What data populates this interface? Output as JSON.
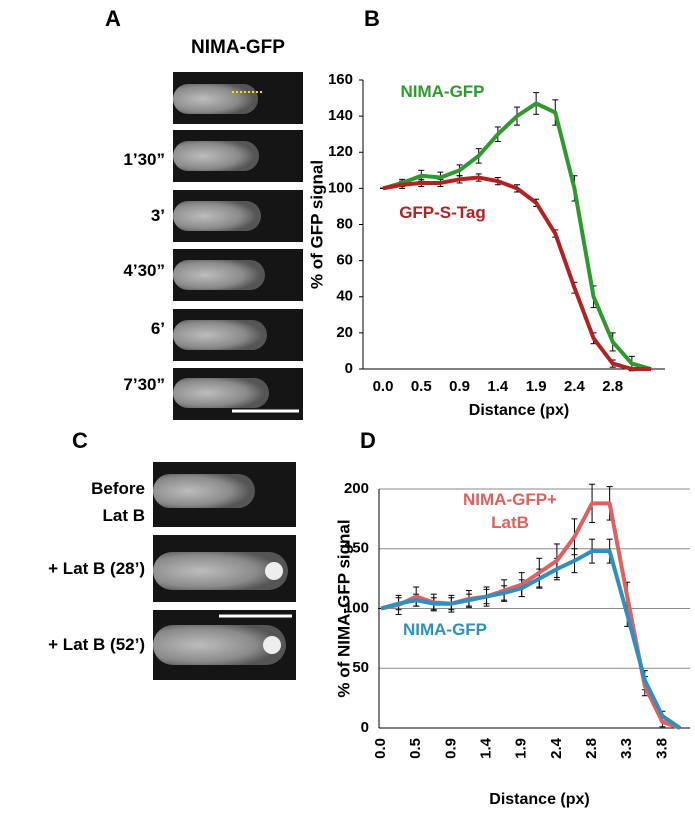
{
  "panels": {
    "A": {
      "label": "A",
      "header": "NIMA-GFP",
      "times": [
        "1’30”",
        "3’",
        "4’30”",
        "6’",
        "7’30”"
      ]
    },
    "B": {
      "label": "B"
    },
    "C": {
      "label": "C",
      "conditions": [
        "Before Lat B",
        "+ Lat B (28’)",
        "+ Lat B (52’)"
      ]
    },
    "D": {
      "label": "D"
    }
  },
  "chart_data": [
    {
      "type": "line",
      "ylabel": "% of GFP signal",
      "xlabel": "Distance (px)",
      "categories": [
        "0.0",
        null,
        "0.5",
        null,
        "0.9",
        null,
        "1.4",
        null,
        "1.9",
        null,
        "2.4",
        null,
        "2.8",
        null,
        null
      ],
      "ylim": [
        0,
        160
      ],
      "yticks": [
        0,
        20,
        40,
        60,
        80,
        100,
        120,
        140,
        160
      ],
      "grid": false,
      "series": [
        {
          "name": "NIMA-GFP",
          "color": "#2e9a2e",
          "values": [
            100,
            103,
            107,
            106,
            110,
            118,
            130,
            140,
            147,
            142,
            100,
            40,
            15,
            3,
            0
          ],
          "errors": [
            0,
            2,
            3,
            3,
            3,
            4,
            4,
            5,
            6,
            7,
            7,
            6,
            5,
            4,
            0
          ]
        },
        {
          "name": "GFP-S-Tag",
          "color": "#b22222",
          "values": [
            100,
            102,
            103,
            103,
            105,
            106,
            104,
            100,
            92,
            75,
            45,
            17,
            3,
            0,
            0
          ],
          "errors": [
            0,
            2,
            2,
            2,
            2,
            2,
            2,
            2,
            2,
            2,
            3,
            3,
            2,
            0,
            0
          ]
        }
      ]
    },
    {
      "type": "line",
      "ylabel": "% of NIMA-GFP signal",
      "xlabel": "Distance (px)",
      "categories": [
        "0.0",
        null,
        "0.5",
        null,
        "0.9",
        null,
        "1.4",
        null,
        "1.9",
        null,
        "2.4",
        null,
        "2.8",
        null,
        "3.3",
        null,
        "3.8",
        null
      ],
      "ylim": [
        0,
        200
      ],
      "yticks": [
        0,
        50,
        100,
        150,
        200
      ],
      "grid": true,
      "series": [
        {
          "name": "NIMA-GFP+ LatB",
          "color": "#e06060",
          "values": [
            100,
            103,
            110,
            105,
            104,
            108,
            110,
            115,
            120,
            130,
            140,
            160,
            188,
            188,
            110,
            35,
            5,
            0
          ],
          "errors": [
            0,
            8,
            8,
            7,
            7,
            7,
            8,
            9,
            10,
            12,
            14,
            15,
            16,
            14,
            12,
            8,
            4,
            0
          ]
        },
        {
          "name": "NIMA-GFP",
          "color": "#2e8fc0",
          "values": [
            100,
            104,
            107,
            104,
            104,
            107,
            110,
            113,
            117,
            125,
            133,
            140,
            148,
            148,
            95,
            40,
            10,
            0
          ],
          "errors": [
            0,
            5,
            5,
            5,
            5,
            5,
            6,
            6,
            7,
            8,
            9,
            10,
            10,
            10,
            10,
            8,
            4,
            0
          ]
        }
      ]
    }
  ]
}
